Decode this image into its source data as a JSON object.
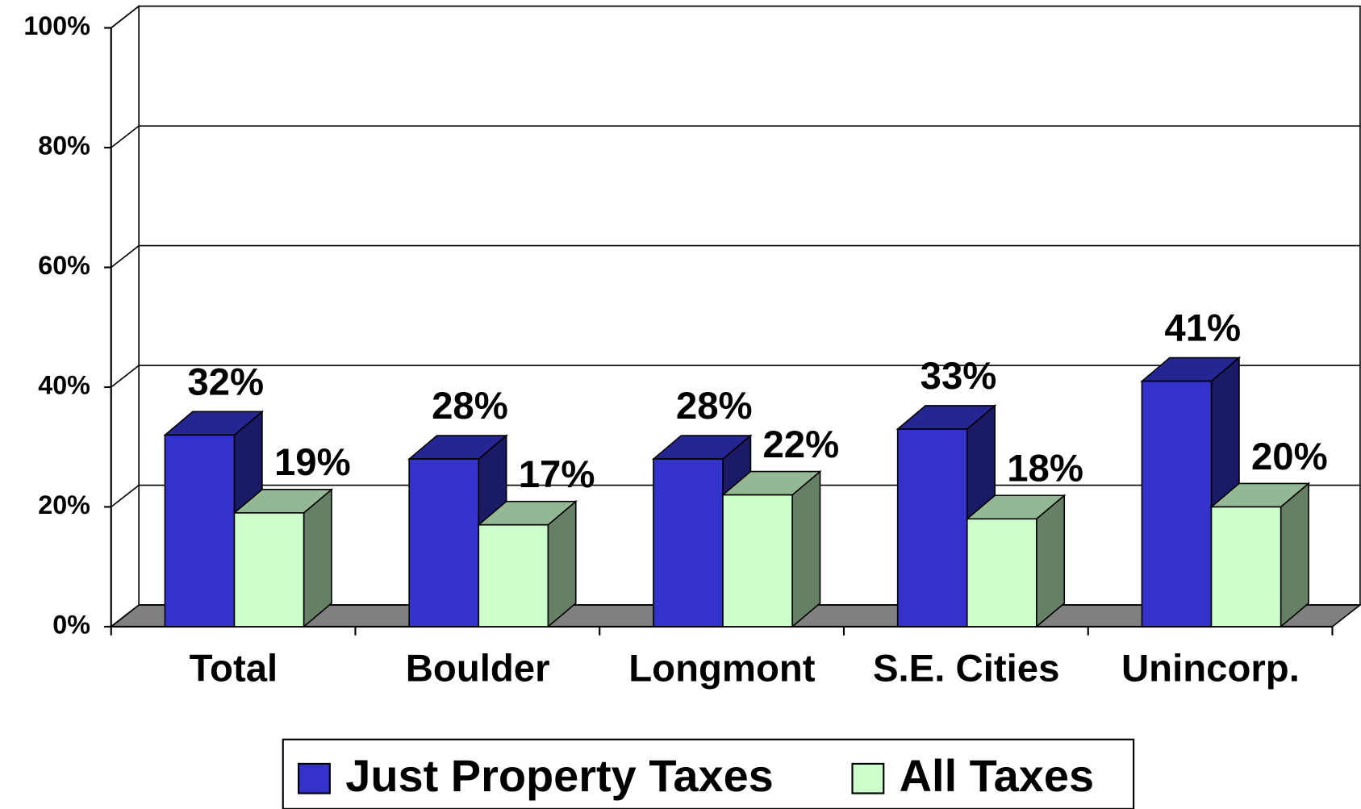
{
  "chart_data": {
    "type": "bar3d",
    "categories": [
      "Total",
      "Boulder",
      "Longmont",
      "S.E. Cities",
      "Unincorp."
    ],
    "series": [
      {
        "name": "Just Property Taxes",
        "color": "#3333cc",
        "values": [
          32,
          28,
          28,
          33,
          41
        ],
        "value_labels": [
          "32%",
          "28%",
          "28%",
          "33%",
          "41%"
        ]
      },
      {
        "name": "All Taxes",
        "color": "#ccffcc",
        "values": [
          19,
          17,
          22,
          18,
          20
        ],
        "value_labels": [
          "19%",
          "17%",
          "22%",
          "18%",
          "20%"
        ]
      }
    ],
    "ylim": [
      0,
      100
    ],
    "yticks": [
      {
        "value": 0,
        "label": "0%"
      },
      {
        "value": 20,
        "label": "20%"
      },
      {
        "value": 40,
        "label": "40%"
      },
      {
        "value": 60,
        "label": "60%"
      },
      {
        "value": 80,
        "label": "80%"
      },
      {
        "value": 100,
        "label": "100%"
      }
    ],
    "grid": true,
    "legend": "bottom"
  }
}
